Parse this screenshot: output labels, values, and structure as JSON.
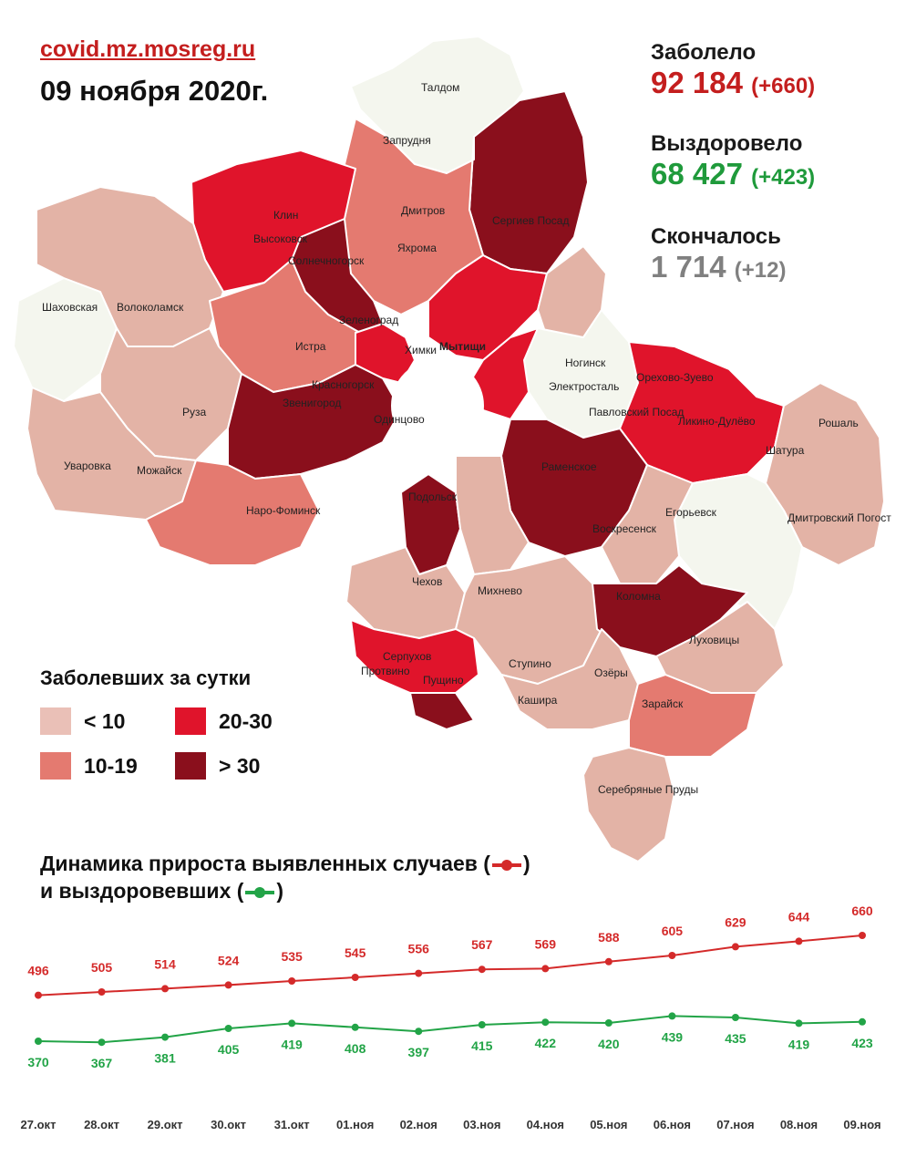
{
  "header": {
    "source": "covid.mz.mosreg.ru",
    "date": "09 ноября 2020г."
  },
  "stats": {
    "sick": {
      "label": "Заболело",
      "value": "92 184",
      "delta": "(+660)"
    },
    "recovered": {
      "label": "Выздоровело",
      "value": "68 427",
      "delta": "(+423)"
    },
    "died": {
      "label": "Скончалось",
      "value": "1 714",
      "delta": "(+12)"
    }
  },
  "legend": {
    "title": "Заболевших за сутки",
    "items": [
      {
        "label": "< 10",
        "color": "#eac0b7"
      },
      {
        "label": "10-19",
        "color": "#e47a70"
      },
      {
        "label": "20-30",
        "color": "#e0142b"
      },
      {
        "label": "> 30",
        "color": "#8a0f1c"
      }
    ]
  },
  "map": {
    "colors": {
      "white": "#f4f6ee",
      "low": "#e3b3a6",
      "mid": "#e47a70",
      "high": "#e0142b",
      "top": "#8a0f1c"
    },
    "labels": [
      "Талдом",
      "Запрудня",
      "Дмитров",
      "Яхрома",
      "Сергиев Посад",
      "Клин",
      "Высоковск",
      "Солнечногорск",
      "Шаховская",
      "Волоколамск",
      "Истра",
      "Зеленоград",
      "Мытищи",
      "Химки",
      "Ногинск",
      "Электросталь",
      "Павловский Посад",
      "Орехово-Зуево",
      "Ликино-Дулёво",
      "Красногорск",
      "Звенигород",
      "Одинцово",
      "Руза",
      "Уваровка",
      "Можайск",
      "Наро-Фоминск",
      "Раменское",
      "Шатура",
      "Рошаль",
      "Подольск",
      "Егорьевск",
      "Дмитровский Погост",
      "Воскресенск",
      "Чехов",
      "Михнево",
      "Коломна",
      "Луховицы",
      "Серпухов",
      "Пущино",
      "Протвино",
      "Ступино",
      "Озёры",
      "Кашира",
      "Зарайск",
      "Серебряные Пруды"
    ]
  },
  "dynamics": {
    "title_line1": "Динамика прироста выявленных случаев (",
    "title_line1_end": ")",
    "title_line2": "и выздоровевших (",
    "title_line2_end": ")"
  },
  "chart_data": {
    "type": "line",
    "categories": [
      "27.окт",
      "28.окт",
      "29.окт",
      "30.окт",
      "31.окт",
      "01.ноя",
      "02.ноя",
      "03.ноя",
      "04.ноя",
      "05.ноя",
      "06.ноя",
      "07.ноя",
      "08.ноя",
      "09.ноя"
    ],
    "series": [
      {
        "name": "выявленные случаи",
        "color": "#d42a2a",
        "values": [
          496,
          505,
          514,
          524,
          535,
          545,
          556,
          567,
          569,
          588,
          605,
          629,
          644,
          660
        ]
      },
      {
        "name": "выздоровевшие",
        "color": "#22a447",
        "values": [
          370,
          367,
          381,
          405,
          419,
          408,
          397,
          415,
          422,
          420,
          439,
          435,
          419,
          423
        ]
      }
    ],
    "title": "Динамика прироста выявленных случаев и выздоровевших",
    "grid": false,
    "legend": "inline-title"
  }
}
